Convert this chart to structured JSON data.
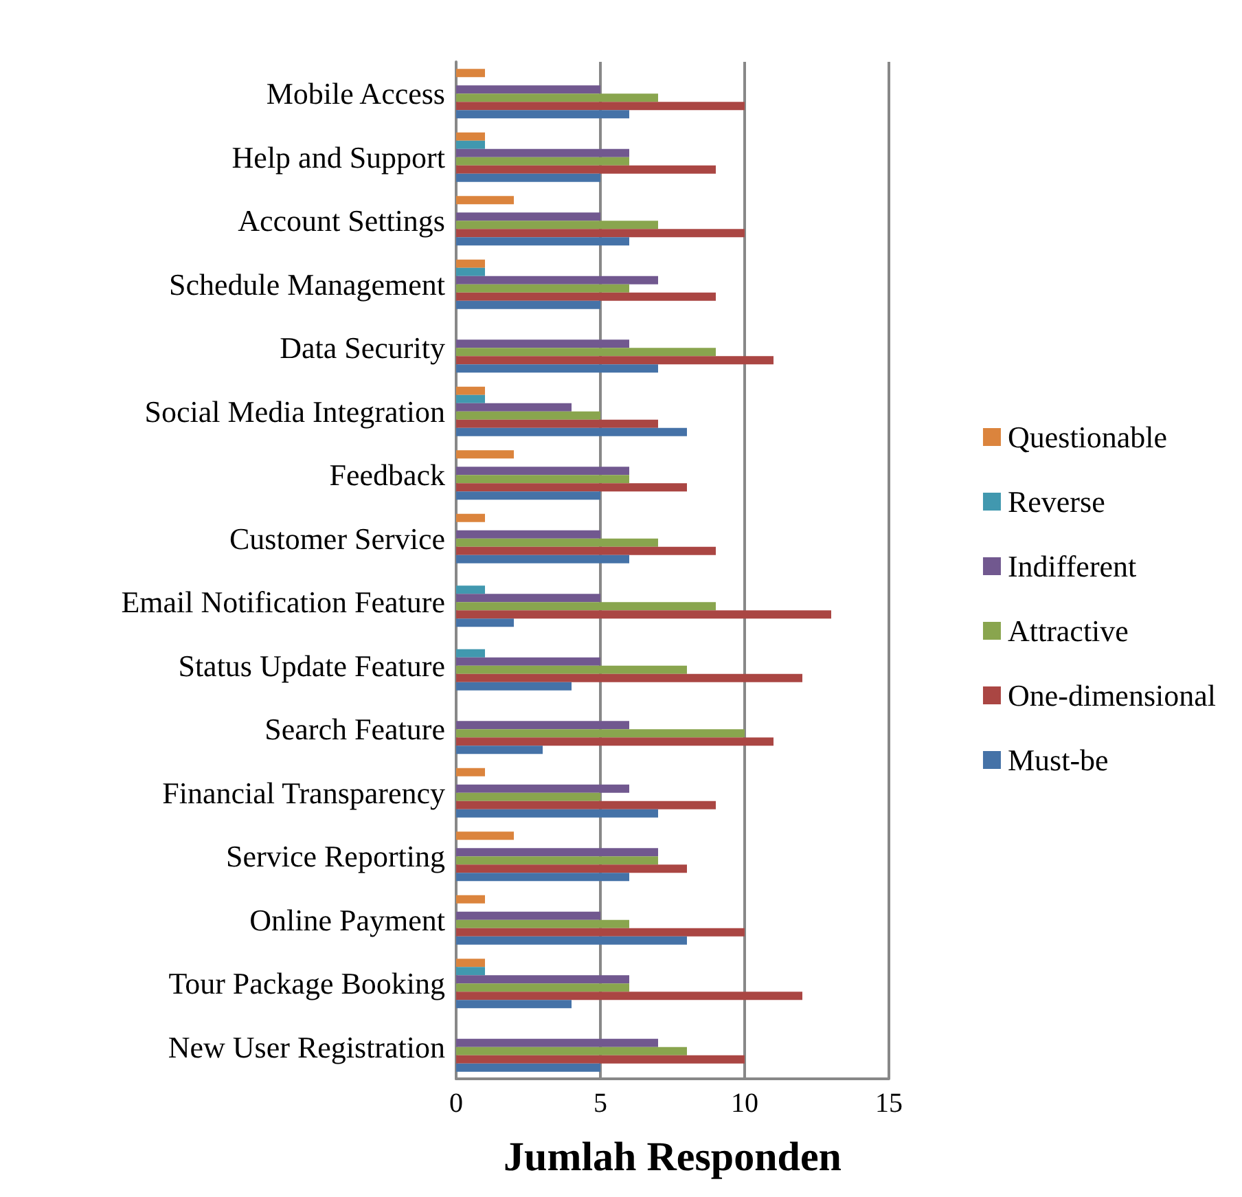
{
  "chart_data": {
    "type": "bar",
    "orientation": "horizontal",
    "xlabel": "Jumlah Responden",
    "categories": [
      "Mobile Access",
      "Help and Support",
      "Account Settings",
      "Schedule Management",
      "Data Security",
      "Social Media Integration",
      "Feedback",
      "Customer Service",
      "Email Notification Feature",
      "Status Update Feature",
      "Search Feature",
      "Financial Transparency",
      "Service Reporting",
      "Online Payment",
      "Tour Package Booking",
      "New User Registration"
    ],
    "series": [
      {
        "name": "Questionable",
        "color": "#db843d",
        "values": [
          1,
          1,
          2,
          1,
          0,
          1,
          2,
          1,
          0,
          0,
          0,
          1,
          2,
          1,
          1,
          0
        ]
      },
      {
        "name": "Reverse",
        "color": "#4198af",
        "values": [
          0,
          1,
          0,
          1,
          0,
          1,
          0,
          0,
          1,
          1,
          0,
          0,
          0,
          0,
          1,
          0
        ]
      },
      {
        "name": "Indifferent",
        "color": "#71588f",
        "values": [
          5,
          6,
          5,
          7,
          6,
          4,
          6,
          5,
          5,
          5,
          6,
          6,
          7,
          5,
          6,
          7
        ]
      },
      {
        "name": "Attractive",
        "color": "#89a54e",
        "values": [
          7,
          6,
          7,
          6,
          9,
          5,
          6,
          7,
          9,
          8,
          10,
          5,
          7,
          6,
          6,
          8
        ]
      },
      {
        "name": "One-dimensional",
        "color": "#aa4643",
        "values": [
          10,
          9,
          10,
          9,
          11,
          7,
          8,
          9,
          13,
          12,
          11,
          9,
          8,
          10,
          12,
          10
        ]
      },
      {
        "name": "Must-be",
        "color": "#4572a7",
        "values": [
          6,
          5,
          6,
          5,
          7,
          8,
          5,
          6,
          2,
          4,
          3,
          7,
          6,
          8,
          4,
          5
        ]
      }
    ],
    "xlim": [
      0,
      15
    ],
    "xticks": [
      0,
      5,
      10,
      15
    ],
    "grid": "x",
    "legend": "right"
  }
}
